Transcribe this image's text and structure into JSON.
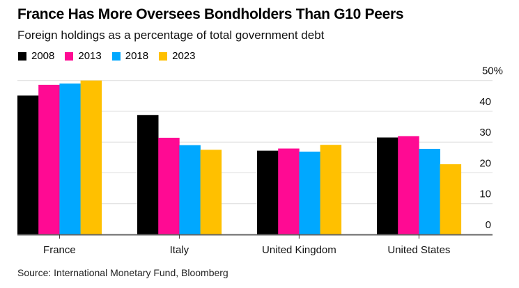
{
  "chart_data": {
    "type": "bar",
    "title": "France Has More Oversees Bondholders Than G10 Peers",
    "subtitle": "Foreign holdings as a percentage of total government debt",
    "categories": [
      "France",
      "Italy",
      "United Kingdom",
      "United States"
    ],
    "series": [
      {
        "name": "2008",
        "color": "#000000",
        "values": [
          45.1,
          38.8,
          27.2,
          31.5
        ]
      },
      {
        "name": "2013",
        "color": "#ff0a93",
        "values": [
          48.6,
          31.4,
          27.9,
          31.9
        ]
      },
      {
        "name": "2018",
        "color": "#00a8ff",
        "values": [
          49.0,
          29.0,
          26.9,
          27.8
        ]
      },
      {
        "name": "2023",
        "color": "#ffc000",
        "values": [
          50.0,
          27.5,
          29.1,
          22.8
        ]
      }
    ],
    "yticks": [
      {
        "value": 0,
        "label": "0"
      },
      {
        "value": 10,
        "label": "10"
      },
      {
        "value": 20,
        "label": "20"
      },
      {
        "value": 30,
        "label": "30"
      },
      {
        "value": 40,
        "label": "40"
      },
      {
        "value": 50,
        "label": "50%"
      }
    ],
    "ylim": [
      0,
      50
    ],
    "xlabel": "",
    "ylabel": "",
    "grid": true,
    "legend_position": "top-left",
    "y_axis_side": "right",
    "source": "Source: International Monetary Fund, Bloomberg"
  }
}
